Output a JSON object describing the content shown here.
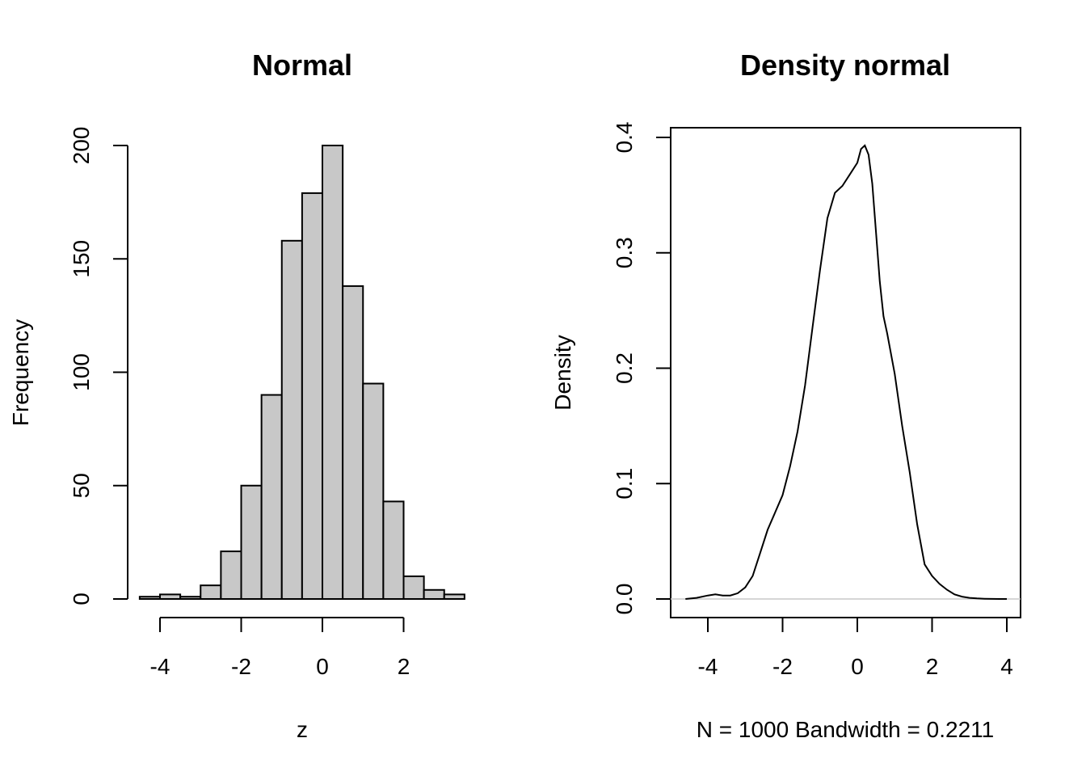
{
  "chart_data": [
    {
      "type": "bar",
      "title": "Normal",
      "xlabel": "z",
      "ylabel": "Frequency",
      "bar_color": "#c8c8c8",
      "bin_edges": [
        -4.5,
        -4.0,
        -3.5,
        -3.0,
        -2.5,
        -2.0,
        -1.5,
        -1.0,
        -0.5,
        0.0,
        0.5,
        1.0,
        1.5,
        2.0,
        2.5,
        3.0,
        3.5
      ],
      "values": [
        1,
        2,
        1,
        6,
        21,
        50,
        90,
        158,
        179,
        200,
        138,
        95,
        43,
        10,
        4,
        2
      ],
      "xlim": [
        -4.5,
        3.5
      ],
      "ylim": [
        0,
        200
      ],
      "x_ticks": [
        -4,
        -2,
        0,
        2
      ],
      "x_tick_labels": [
        "-4",
        "-2",
        "0",
        "2"
      ],
      "y_ticks": [
        0,
        50,
        100,
        150,
        200
      ],
      "y_tick_labels": [
        "0",
        "50",
        "100",
        "150",
        "200"
      ],
      "grid": false,
      "legend": "none"
    },
    {
      "type": "line",
      "title": "Density normal",
      "xlabel": "N = 1000   Bandwidth = 0.2211",
      "ylabel": "Density",
      "line_color": "#000000",
      "baseline_color": "#c8c8c8",
      "x": [
        -4.6,
        -4.3,
        -4.0,
        -3.8,
        -3.6,
        -3.4,
        -3.2,
        -3.0,
        -2.8,
        -2.6,
        -2.4,
        -2.2,
        -2.0,
        -1.8,
        -1.6,
        -1.4,
        -1.2,
        -1.0,
        -0.8,
        -0.6,
        -0.4,
        -0.2,
        0.0,
        0.1,
        0.2,
        0.3,
        0.4,
        0.5,
        0.6,
        0.7,
        0.8,
        1.0,
        1.2,
        1.4,
        1.6,
        1.8,
        2.0,
        2.2,
        2.4,
        2.6,
        2.8,
        3.0,
        3.2,
        3.4,
        3.6,
        3.8,
        4.0
      ],
      "y": [
        0.0,
        0.001,
        0.003,
        0.004,
        0.003,
        0.003,
        0.005,
        0.01,
        0.02,
        0.04,
        0.06,
        0.075,
        0.09,
        0.115,
        0.145,
        0.185,
        0.235,
        0.285,
        0.33,
        0.352,
        0.358,
        0.368,
        0.378,
        0.39,
        0.393,
        0.385,
        0.36,
        0.318,
        0.275,
        0.245,
        0.23,
        0.195,
        0.15,
        0.11,
        0.065,
        0.03,
        0.02,
        0.013,
        0.008,
        0.004,
        0.002,
        0.001,
        0.0005,
        0.0002,
        0.0001,
        0.0,
        0.0
      ],
      "xlim": [
        -4.6,
        4.0
      ],
      "ylim": [
        0,
        0.4
      ],
      "x_ticks": [
        -4,
        -2,
        0,
        2,
        4
      ],
      "x_tick_labels": [
        "-4",
        "-2",
        "0",
        "2",
        "4"
      ],
      "y_ticks": [
        0.0,
        0.1,
        0.2,
        0.3,
        0.4
      ],
      "y_tick_labels": [
        "0.0",
        "0.1",
        "0.2",
        "0.3",
        "0.4"
      ],
      "grid": false,
      "legend": "none"
    }
  ]
}
